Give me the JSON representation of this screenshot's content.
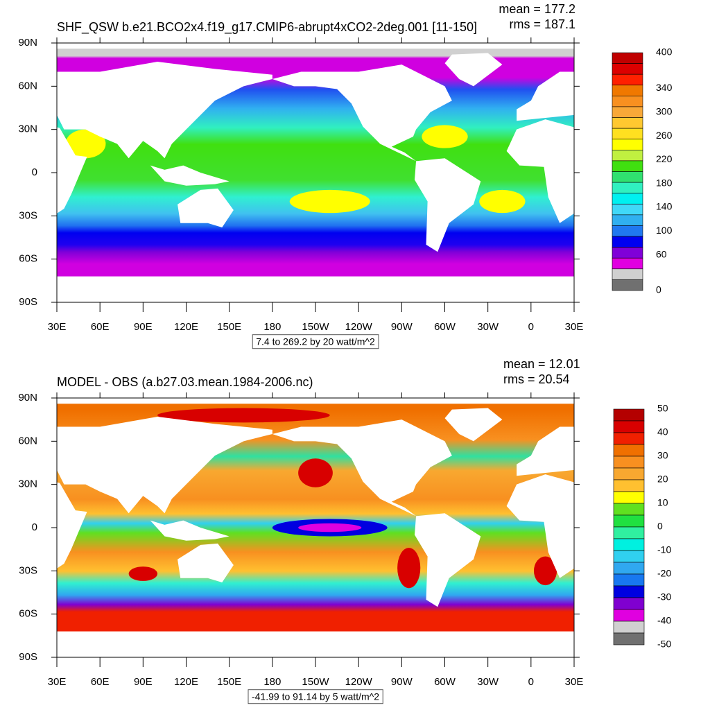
{
  "panels": [
    {
      "title": "SHF_QSW b.e21.BCO2x4.f19_g17.CMIP6-abrupt4xCO2-2deg.001 [11-150]",
      "mean": "mean = 177.2",
      "rms": "rms = 187.1",
      "y_labels": [
        "90N",
        "60N",
        "30N",
        "0",
        "30S",
        "60S",
        "90S"
      ],
      "x_labels": [
        "30E",
        "60E",
        "90E",
        "120E",
        "150E",
        "180",
        "150W",
        "120W",
        "90W",
        "60W",
        "30W",
        "0",
        "30E"
      ],
      "info": "7.4 to 269.2 by 20 watt/m^2",
      "colorbar": {
        "labels": [
          "400",
          "340",
          "300",
          "260",
          "220",
          "180",
          "140",
          "100",
          "60",
          "0"
        ],
        "colors": [
          "#c00000",
          "#dc0000",
          "#ff2000",
          "#f07800",
          "#f89020",
          "#f8a838",
          "#ffc830",
          "#ffe020",
          "#ffff00",
          "#c0f040",
          "#40e010",
          "#30e070",
          "#30f0c0",
          "#00f0f0",
          "#40d8f8",
          "#30b0f0",
          "#2078f0",
          "#0000f0",
          "#8000d8",
          "#e000e0",
          "#d0d0d0",
          "#707070"
        ]
      }
    },
    {
      "title": "MODEL - OBS (a.b27.03.mean.1984-2006.nc)",
      "mean": "mean = 12.01",
      "rms": "rms = 20.54",
      "y_labels": [
        "90N",
        "60N",
        "30N",
        "0",
        "30S",
        "60S",
        "90S"
      ],
      "x_labels": [
        "30E",
        "60E",
        "90E",
        "120E",
        "150E",
        "180",
        "150W",
        "120W",
        "90W",
        "60W",
        "30W",
        "0",
        "30E"
      ],
      "info": "-41.99 to 91.14 by 5 watt/m^2",
      "colorbar": {
        "labels": [
          "50",
          "40",
          "30",
          "20",
          "10",
          "0",
          "-10",
          "-20",
          "-30",
          "-40",
          "-50"
        ],
        "colors": [
          "#b40000",
          "#d80000",
          "#f02000",
          "#f07000",
          "#f89020",
          "#f8a830",
          "#ffc030",
          "#ffff00",
          "#60e020",
          "#20e040",
          "#30f0a0",
          "#00f0e0",
          "#30d0f0",
          "#30a8f0",
          "#1878f0",
          "#0000e0",
          "#8000d0",
          "#e000e0",
          "#d0d0d0",
          "#707070"
        ]
      }
    }
  ]
}
